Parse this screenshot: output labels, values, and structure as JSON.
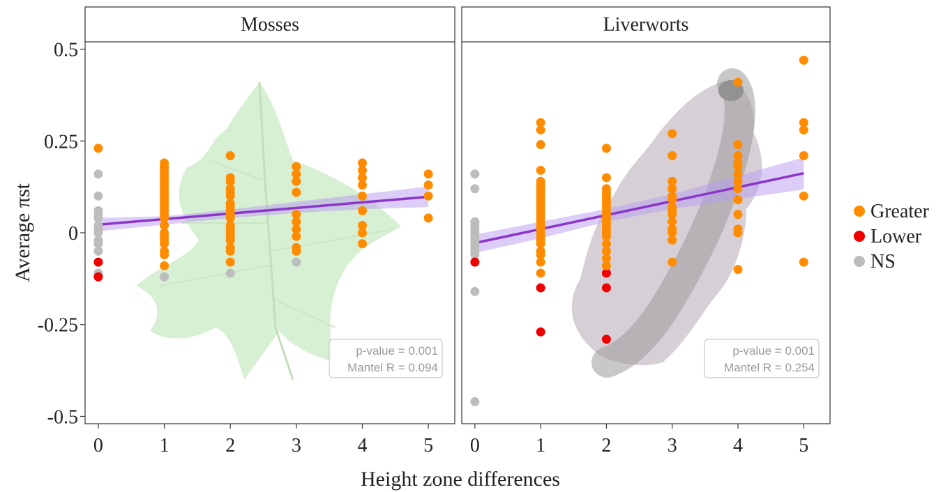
{
  "chart_data": {
    "type": "scatter",
    "xlabel": "Height zone differences",
    "ylabel": "Average πst",
    "xlim": [
      -0.2,
      5.4
    ],
    "ylim": [
      -0.52,
      0.52
    ],
    "x_ticks": [
      0,
      1,
      2,
      3,
      4,
      5
    ],
    "y_ticks": [
      -0.5,
      -0.25,
      0,
      0.25,
      0.5
    ],
    "y_tick_labels": [
      "-0.5",
      "-0.25",
      "0",
      "0.25",
      "0.5"
    ],
    "grid": false,
    "legend_position": "right",
    "legend": [
      {
        "name": "Greater",
        "color": "#ff8c00"
      },
      {
        "name": "Lower",
        "color": "#ee0000"
      },
      {
        "name": "NS",
        "color": "#bdbdbd"
      }
    ],
    "trend_color": "#8b35c9",
    "band_color": "#b79cf2",
    "panels": [
      {
        "title": "Mosses",
        "background_image": "moss-icon",
        "stats": [
          "p-value = 0.001",
          "Mantel R = 0.094"
        ],
        "trend": {
          "x": [
            0,
            5
          ],
          "y": [
            0.022,
            0.098
          ]
        },
        "band": {
          "x": [
            0,
            1,
            2,
            3,
            4,
            5
          ],
          "lower": [
            0.004,
            0.022,
            0.04,
            0.054,
            0.064,
            0.07
          ],
          "upper": [
            0.04,
            0.045,
            0.063,
            0.085,
            0.105,
            0.126
          ]
        },
        "points": {
          "Greater": [
            [
              0,
              0.23
            ],
            [
              1,
              0.19
            ],
            [
              1,
              0.18
            ],
            [
              1,
              0.17
            ],
            [
              1,
              0.16
            ],
            [
              1,
              0.15
            ],
            [
              1,
              0.14
            ],
            [
              1,
              0.13
            ],
            [
              1,
              0.12
            ],
            [
              1,
              0.11
            ],
            [
              1,
              0.1
            ],
            [
              1,
              0.09
            ],
            [
              1,
              0.08
            ],
            [
              1,
              0.07
            ],
            [
              1,
              0.06
            ],
            [
              1,
              0.05
            ],
            [
              1,
              0.04
            ],
            [
              1,
              0.02
            ],
            [
              1,
              0.0
            ],
            [
              1,
              -0.01
            ],
            [
              1,
              -0.02
            ],
            [
              1,
              -0.03
            ],
            [
              1,
              -0.05
            ],
            [
              1,
              -0.06
            ],
            [
              1,
              -0.09
            ],
            [
              2,
              0.21
            ],
            [
              2,
              0.15
            ],
            [
              2,
              0.14
            ],
            [
              2,
              0.12
            ],
            [
              2,
              0.11
            ],
            [
              2,
              0.1
            ],
            [
              2,
              0.08
            ],
            [
              2,
              0.07
            ],
            [
              2,
              0.06
            ],
            [
              2,
              0.05
            ],
            [
              2,
              0.04
            ],
            [
              2,
              0.02
            ],
            [
              2,
              0.01
            ],
            [
              2,
              0.0
            ],
            [
              2,
              -0.01
            ],
            [
              2,
              -0.02
            ],
            [
              2,
              -0.04
            ],
            [
              2,
              -0.05
            ],
            [
              2,
              -0.08
            ],
            [
              3,
              0.18
            ],
            [
              3,
              0.16
            ],
            [
              3,
              0.14
            ],
            [
              3,
              0.11
            ],
            [
              3,
              0.05
            ],
            [
              3,
              0.03
            ],
            [
              3,
              0.01
            ],
            [
              3,
              -0.01
            ],
            [
              3,
              -0.04
            ],
            [
              3,
              -0.05
            ],
            [
              4,
              0.19
            ],
            [
              4,
              0.17
            ],
            [
              4,
              0.15
            ],
            [
              4,
              0.13
            ],
            [
              4,
              0.1
            ],
            [
              4,
              0.06
            ],
            [
              4,
              0.02
            ],
            [
              4,
              0.0
            ],
            [
              4,
              -0.03
            ],
            [
              5,
              0.16
            ],
            [
              5,
              0.13
            ],
            [
              5,
              0.1
            ],
            [
              5,
              0.04
            ]
          ],
          "Lower": [
            [
              0,
              -0.08
            ],
            [
              0,
              -0.12
            ]
          ],
          "NS": [
            [
              0,
              0.16
            ],
            [
              0,
              0.1
            ],
            [
              0,
              0.06
            ],
            [
              0,
              0.05
            ],
            [
              0,
              0.04
            ],
            [
              0,
              0.02
            ],
            [
              0,
              0.01
            ],
            [
              0,
              0.0
            ],
            [
              0,
              -0.02
            ],
            [
              0,
              -0.03
            ],
            [
              0,
              -0.05
            ],
            [
              0,
              -0.11
            ],
            [
              1,
              -0.12
            ],
            [
              2,
              -0.11
            ],
            [
              3,
              -0.08
            ]
          ]
        }
      },
      {
        "title": "Liverworts",
        "background_image": "liverwort-icon",
        "stats": [
          "p-value = 0.001",
          "Mantel R = 0.254"
        ],
        "trend": {
          "x": [
            0,
            5
          ],
          "y": [
            -0.028,
            0.162
          ]
        },
        "band": {
          "x": [
            0,
            1,
            2,
            3,
            4,
            5
          ],
          "lower": [
            -0.055,
            -0.015,
            0.03,
            0.065,
            0.092,
            0.118
          ],
          "upper": [
            -0.005,
            0.03,
            0.065,
            0.105,
            0.155,
            0.205
          ]
        },
        "points": {
          "Greater": [
            [
              1,
              0.3
            ],
            [
              1,
              0.28
            ],
            [
              1,
              0.24
            ],
            [
              1,
              0.17
            ],
            [
              1,
              0.14
            ],
            [
              1,
              0.13
            ],
            [
              1,
              0.12
            ],
            [
              1,
              0.11
            ],
            [
              1,
              0.1
            ],
            [
              1,
              0.09
            ],
            [
              1,
              0.08
            ],
            [
              1,
              0.07
            ],
            [
              1,
              0.06
            ],
            [
              1,
              0.05
            ],
            [
              1,
              0.04
            ],
            [
              1,
              0.03
            ],
            [
              1,
              0.02
            ],
            [
              1,
              0.01
            ],
            [
              1,
              0.0
            ],
            [
              1,
              -0.01
            ],
            [
              1,
              -0.02
            ],
            [
              1,
              -0.03
            ],
            [
              1,
              -0.05
            ],
            [
              1,
              -0.06
            ],
            [
              1,
              -0.08
            ],
            [
              1,
              -0.11
            ],
            [
              2,
              0.23
            ],
            [
              2,
              0.15
            ],
            [
              2,
              0.12
            ],
            [
              2,
              0.11
            ],
            [
              2,
              0.1
            ],
            [
              2,
              0.09
            ],
            [
              2,
              0.08
            ],
            [
              2,
              0.07
            ],
            [
              2,
              0.06
            ],
            [
              2,
              0.05
            ],
            [
              2,
              0.04
            ],
            [
              2,
              0.03
            ],
            [
              2,
              0.02
            ],
            [
              2,
              0.01
            ],
            [
              2,
              0.0
            ],
            [
              2,
              -0.01
            ],
            [
              2,
              -0.03
            ],
            [
              2,
              -0.05
            ],
            [
              2,
              -0.07
            ],
            [
              2,
              -0.09
            ],
            [
              3,
              0.27
            ],
            [
              3,
              0.21
            ],
            [
              3,
              0.14
            ],
            [
              3,
              0.12
            ],
            [
              3,
              0.1
            ],
            [
              3,
              0.09
            ],
            [
              3,
              0.07
            ],
            [
              3,
              0.06
            ],
            [
              3,
              0.05
            ],
            [
              3,
              0.03
            ],
            [
              3,
              0.01
            ],
            [
              3,
              0.0
            ],
            [
              3,
              -0.02
            ],
            [
              3,
              -0.08
            ],
            [
              4,
              0.41
            ],
            [
              4,
              0.24
            ],
            [
              4,
              0.21
            ],
            [
              4,
              0.19
            ],
            [
              4,
              0.18
            ],
            [
              4,
              0.16
            ],
            [
              4,
              0.14
            ],
            [
              4,
              0.12
            ],
            [
              4,
              0.09
            ],
            [
              4,
              0.05
            ],
            [
              4,
              0.01
            ],
            [
              4,
              0.0
            ],
            [
              4,
              -0.1
            ],
            [
              5,
              0.47
            ],
            [
              5,
              0.3
            ],
            [
              5,
              0.28
            ],
            [
              5,
              0.21
            ],
            [
              5,
              0.1
            ],
            [
              5,
              -0.08
            ]
          ],
          "Lower": [
            [
              0,
              -0.08
            ],
            [
              1,
              -0.15
            ],
            [
              1,
              -0.27
            ],
            [
              2,
              -0.11
            ],
            [
              2,
              -0.15
            ],
            [
              2,
              -0.29
            ]
          ],
          "NS": [
            [
              0,
              0.16
            ],
            [
              0,
              0.12
            ],
            [
              0,
              0.03
            ],
            [
              0,
              0.02
            ],
            [
              0,
              0.01
            ],
            [
              0,
              0.0
            ],
            [
              0,
              -0.01
            ],
            [
              0,
              -0.02
            ],
            [
              0,
              -0.03
            ],
            [
              0,
              -0.04
            ],
            [
              0,
              -0.05
            ],
            [
              0,
              -0.06
            ],
            [
              0,
              -0.16
            ],
            [
              0,
              -0.46
            ]
          ]
        }
      }
    ]
  }
}
